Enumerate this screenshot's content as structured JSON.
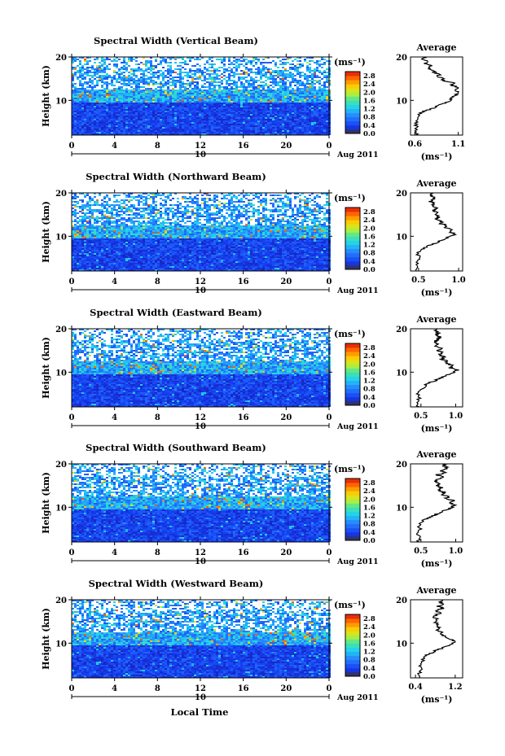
{
  "figure": {
    "common": {
      "ylabel": "Height (km)",
      "xlabel": "Local Time",
      "unit_label": "(ms⁻¹)",
      "date_label": "Aug 2011",
      "day_marker": "10",
      "avg_title": "Average",
      "avg_unit": "(ms⁻¹)"
    }
  },
  "chart_data": [
    {
      "type": "heatmap",
      "title": "Spectral Width (Vertical Beam)",
      "xlabel": "Local Time",
      "ylabel": "Height (km)",
      "xlim": [
        0,
        24
      ],
      "ylim": [
        2,
        20
      ],
      "x_ticks": [
        "0",
        "4",
        "8",
        "12",
        "16",
        "20",
        "0"
      ],
      "y_ticks": [
        "10",
        "20"
      ],
      "colorbar": {
        "label": "(ms⁻¹)",
        "range": [
          0.0,
          3.0
        ],
        "ticks": [
          "0.0",
          "0.4",
          "0.8",
          "1.2",
          "1.6",
          "2.0",
          "2.4",
          "2.8"
        ]
      },
      "average": {
        "title": "Average",
        "xlabel": "(ms⁻¹)",
        "xlim": [
          0.55,
          1.15
        ],
        "x_ticks": [
          "0.6",
          "1.1"
        ],
        "y_ticks": [
          "10",
          "20"
        ],
        "profile": [
          [
            2,
            0.62
          ],
          [
            3,
            0.6
          ],
          [
            4,
            0.62
          ],
          [
            5,
            0.61
          ],
          [
            6,
            0.62
          ],
          [
            7,
            0.66
          ],
          [
            7.5,
            0.7
          ],
          [
            8,
            0.78
          ],
          [
            8.5,
            0.85
          ],
          [
            9,
            0.88
          ],
          [
            9.5,
            0.97
          ],
          [
            10,
            1.0
          ],
          [
            10.5,
            1.02
          ],
          [
            11,
            1.06
          ],
          [
            11.5,
            1.08
          ],
          [
            12,
            1.1
          ],
          [
            12.5,
            1.06
          ],
          [
            13,
            1.1
          ],
          [
            13.5,
            1.02
          ],
          [
            14,
            1.04
          ],
          [
            14.5,
            0.92
          ],
          [
            15,
            0.93
          ],
          [
            15.5,
            0.86
          ],
          [
            16,
            0.88
          ],
          [
            16.5,
            0.82
          ],
          [
            17,
            0.8
          ],
          [
            17.5,
            0.74
          ],
          [
            18,
            0.78
          ],
          [
            18.5,
            0.72
          ],
          [
            19,
            0.76
          ],
          [
            19.5,
            0.7
          ],
          [
            20,
            0.72
          ]
        ]
      }
    },
    {
      "type": "heatmap",
      "title": "Spectral Width (Northward Beam)",
      "xlabel": "Local Time",
      "ylabel": "Height (km)",
      "xlim": [
        0,
        24
      ],
      "ylim": [
        2,
        20
      ],
      "x_ticks": [
        "0",
        "4",
        "8",
        "12",
        "16",
        "20",
        "0"
      ],
      "y_ticks": [
        "10",
        "20"
      ],
      "colorbar": {
        "label": "(ms⁻¹)",
        "range": [
          0.0,
          3.0
        ],
        "ticks": [
          "0.0",
          "0.4",
          "0.8",
          "1.2",
          "1.6",
          "2.0",
          "2.4",
          "2.8"
        ]
      },
      "average": {
        "title": "Average",
        "xlabel": "(ms⁻¹)",
        "xlim": [
          0.4,
          1.05
        ],
        "x_ticks": [
          "0.5",
          "1.0"
        ],
        "y_ticks": [
          "10",
          "20"
        ],
        "profile": [
          [
            2,
            0.48
          ],
          [
            3,
            0.5
          ],
          [
            4,
            0.47
          ],
          [
            5,
            0.52
          ],
          [
            6,
            0.49
          ],
          [
            7,
            0.55
          ],
          [
            7.5,
            0.6
          ],
          [
            8,
            0.65
          ],
          [
            8.5,
            0.72
          ],
          [
            9,
            0.78
          ],
          [
            9.5,
            0.85
          ],
          [
            10,
            0.9
          ],
          [
            10.5,
            0.96
          ],
          [
            11,
            0.88
          ],
          [
            11.5,
            0.94
          ],
          [
            12,
            0.84
          ],
          [
            12.5,
            0.86
          ],
          [
            13,
            0.76
          ],
          [
            13.5,
            0.8
          ],
          [
            14,
            0.72
          ],
          [
            14.5,
            0.76
          ],
          [
            15,
            0.7
          ],
          [
            15.5,
            0.74
          ],
          [
            16,
            0.68
          ],
          [
            16.5,
            0.72
          ],
          [
            17,
            0.66
          ],
          [
            17.5,
            0.7
          ],
          [
            18,
            0.64
          ],
          [
            18.5,
            0.68
          ],
          [
            19,
            0.7
          ],
          [
            19.5,
            0.66
          ],
          [
            20,
            0.68
          ]
        ]
      }
    },
    {
      "type": "heatmap",
      "title": "Spectral Width (Eastward Beam)",
      "xlabel": "Local Time",
      "ylabel": "Height (km)",
      "xlim": [
        0,
        24
      ],
      "ylim": [
        2,
        20
      ],
      "x_ticks": [
        "0",
        "4",
        "8",
        "12",
        "16",
        "20",
        "0"
      ],
      "y_ticks": [
        "10",
        "20"
      ],
      "colorbar": {
        "label": "(ms⁻¹)",
        "range": [
          0.0,
          3.0
        ],
        "ticks": [
          "0.0",
          "0.4",
          "0.8",
          "1.2",
          "1.6",
          "2.0",
          "2.4",
          "2.8"
        ]
      },
      "average": {
        "title": "Average",
        "xlabel": "(ms⁻¹)",
        "xlim": [
          0.35,
          1.1
        ],
        "x_ticks": [
          "0.5",
          "1.0"
        ],
        "y_ticks": [
          "10",
          "20"
        ],
        "profile": [
          [
            2,
            0.45
          ],
          [
            3,
            0.42
          ],
          [
            4,
            0.48
          ],
          [
            5,
            0.46
          ],
          [
            6,
            0.5
          ],
          [
            7,
            0.56
          ],
          [
            7.5,
            0.62
          ],
          [
            8,
            0.7
          ],
          [
            8.5,
            0.76
          ],
          [
            9,
            0.84
          ],
          [
            9.5,
            0.9
          ],
          [
            10,
            0.98
          ],
          [
            10.5,
            1.02
          ],
          [
            11,
            0.92
          ],
          [
            11.5,
            0.96
          ],
          [
            12,
            0.86
          ],
          [
            12.5,
            0.88
          ],
          [
            13,
            0.8
          ],
          [
            13.5,
            0.84
          ],
          [
            14,
            0.76
          ],
          [
            14.5,
            0.8
          ],
          [
            15,
            0.74
          ],
          [
            15.5,
            0.78
          ],
          [
            16,
            0.72
          ],
          [
            16.5,
            0.76
          ],
          [
            17,
            0.7
          ],
          [
            17.5,
            0.74
          ],
          [
            18,
            0.78
          ],
          [
            18.5,
            0.72
          ],
          [
            19,
            0.76
          ],
          [
            19.5,
            0.7
          ],
          [
            20,
            0.74
          ]
        ]
      }
    },
    {
      "type": "heatmap",
      "title": "Spectral Width (Southward Beam)",
      "xlabel": "Local Time",
      "ylabel": "Height (km)",
      "xlim": [
        0,
        24
      ],
      "ylim": [
        2,
        20
      ],
      "x_ticks": [
        "0",
        "4",
        "8",
        "12",
        "16",
        "20",
        "0"
      ],
      "y_ticks": [
        "10",
        "20"
      ],
      "colorbar": {
        "label": "(ms⁻¹)",
        "range": [
          0.0,
          3.0
        ],
        "ticks": [
          "0.0",
          "0.4",
          "0.8",
          "1.2",
          "1.6",
          "2.0",
          "2.4",
          "2.8"
        ]
      },
      "average": {
        "title": "Average",
        "xlabel": "(ms⁻¹)",
        "xlim": [
          0.35,
          1.1
        ],
        "x_ticks": [
          "0.5",
          "1.0"
        ],
        "y_ticks": [
          "10",
          "20"
        ],
        "profile": [
          [
            2,
            0.46
          ],
          [
            3,
            0.5
          ],
          [
            4,
            0.44
          ],
          [
            5,
            0.48
          ],
          [
            6,
            0.47
          ],
          [
            7,
            0.54
          ],
          [
            7.5,
            0.6
          ],
          [
            8,
            0.66
          ],
          [
            8.5,
            0.74
          ],
          [
            9,
            0.8
          ],
          [
            9.5,
            0.88
          ],
          [
            10,
            0.94
          ],
          [
            10.5,
            1.0
          ],
          [
            11,
            0.9
          ],
          [
            11.5,
            0.98
          ],
          [
            12,
            0.86
          ],
          [
            12.5,
            0.9
          ],
          [
            13,
            0.8
          ],
          [
            13.5,
            0.84
          ],
          [
            14,
            0.74
          ],
          [
            14.5,
            0.8
          ],
          [
            15,
            0.72
          ],
          [
            15.5,
            0.78
          ],
          [
            16,
            0.7
          ],
          [
            16.5,
            0.76
          ],
          [
            17,
            0.8
          ],
          [
            17.5,
            0.74
          ],
          [
            18,
            0.86
          ],
          [
            18.5,
            0.78
          ],
          [
            19,
            0.9
          ],
          [
            19.5,
            0.82
          ],
          [
            20,
            0.84
          ]
        ]
      }
    },
    {
      "type": "heatmap",
      "title": "Spectral Width (Westward Beam)",
      "xlabel": "Local Time",
      "ylabel": "Height (km)",
      "xlim": [
        0,
        24
      ],
      "ylim": [
        2,
        20
      ],
      "x_ticks": [
        "0",
        "4",
        "8",
        "12",
        "16",
        "20",
        "0"
      ],
      "y_ticks": [
        "10",
        "20"
      ],
      "colorbar": {
        "label": "(ms⁻¹)",
        "range": [
          0.0,
          3.0
        ],
        "ticks": [
          "0.0",
          "0.4",
          "0.8",
          "1.2",
          "1.6",
          "2.0",
          "2.4",
          "2.8"
        ]
      },
      "average": {
        "title": "Average",
        "xlabel": "(ms⁻¹)",
        "xlim": [
          0.3,
          1.35
        ],
        "x_ticks": [
          "0.4",
          "1.2"
        ],
        "y_ticks": [
          "10",
          "20"
        ],
        "profile": [
          [
            2,
            0.5
          ],
          [
            3,
            0.46
          ],
          [
            4,
            0.52
          ],
          [
            5,
            0.5
          ],
          [
            6,
            0.54
          ],
          [
            7,
            0.6
          ],
          [
            7.5,
            0.68
          ],
          [
            8,
            0.76
          ],
          [
            8.5,
            0.86
          ],
          [
            9,
            0.96
          ],
          [
            9.5,
            1.06
          ],
          [
            10,
            1.14
          ],
          [
            10.5,
            1.2
          ],
          [
            11,
            1.08
          ],
          [
            11.5,
            1.0
          ],
          [
            12,
            0.92
          ],
          [
            12.5,
            0.96
          ],
          [
            13,
            0.84
          ],
          [
            13.5,
            0.9
          ],
          [
            14,
            0.8
          ],
          [
            14.5,
            0.86
          ],
          [
            15,
            0.78
          ],
          [
            15.5,
            0.84
          ],
          [
            16,
            0.76
          ],
          [
            16.5,
            0.82
          ],
          [
            17,
            0.9
          ],
          [
            17.5,
            0.82
          ],
          [
            18,
            0.96
          ],
          [
            18.5,
            0.86
          ],
          [
            19,
            0.98
          ],
          [
            19.5,
            0.9
          ],
          [
            20,
            0.94
          ]
        ]
      }
    }
  ]
}
